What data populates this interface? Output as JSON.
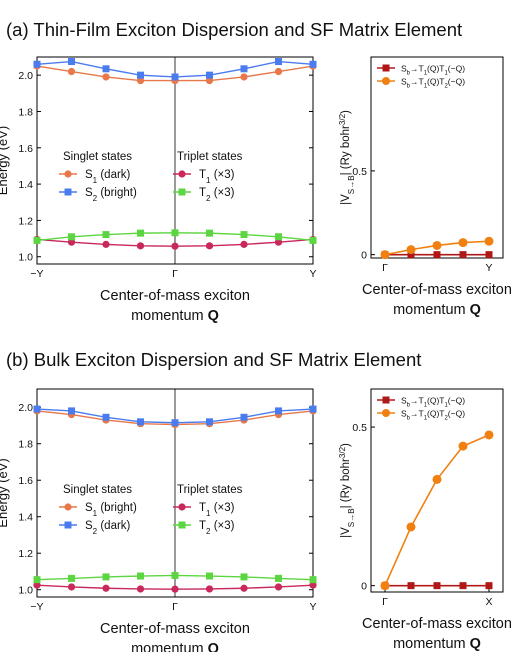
{
  "panel_a_title": "(a) Thin-Film Exciton Dispersion and SF Matrix Element",
  "panel_b_title": "(b) Bulk Exciton Dispersion and SF Matrix Element",
  "colors": {
    "s1": "#e8784a",
    "s2": "#4a7cf0",
    "t1": "#c8285a",
    "t2": "#5cd640",
    "v1": "#b01818",
    "v2": "#f08010"
  },
  "chart_data": [
    {
      "id": "a-dispersion",
      "type": "line",
      "xlabel": "Center-of-mass exciton momentum Q",
      "ylabel": "Energy (eV)",
      "x_tick_labels": [
        "−Y",
        "Γ",
        "Y"
      ],
      "ylim": [
        0.96,
        2.1
      ],
      "y_ticks": [
        1.0,
        1.2,
        1.4,
        1.6,
        1.8,
        2.0
      ],
      "legend_groups": [
        {
          "title": "Singlet states",
          "entries": [
            "S1 (dark)",
            "S2 (bright)"
          ]
        },
        {
          "title": "Triplet states",
          "entries": [
            "T1 (×3)",
            "T2 (×3)"
          ]
        }
      ],
      "x": [
        -1,
        -0.75,
        -0.5,
        -0.25,
        0,
        0.25,
        0.5,
        0.75,
        1
      ],
      "series": [
        {
          "name": "S1 (dark)",
          "values": [
            2.05,
            2.02,
            1.99,
            1.97,
            1.97,
            1.97,
            1.99,
            2.02,
            2.05
          ]
        },
        {
          "name": "S2 (bright)",
          "values": [
            2.06,
            2.075,
            2.035,
            2.0,
            1.99,
            2.0,
            2.035,
            2.075,
            2.06
          ]
        },
        {
          "name": "T1 (×3)",
          "values": [
            1.095,
            1.08,
            1.068,
            1.06,
            1.058,
            1.06,
            1.068,
            1.08,
            1.095
          ]
        },
        {
          "name": "T2 (×3)",
          "values": [
            1.09,
            1.11,
            1.122,
            1.13,
            1.132,
            1.13,
            1.122,
            1.11,
            1.09
          ]
        }
      ]
    },
    {
      "id": "a-matrix",
      "type": "line",
      "xlabel": "Center-of-mass exciton momentum Q",
      "ylabel": "|V_S→B|  (Ry bohr^3/2)",
      "x_tick_labels": [
        "Γ",
        "Y"
      ],
      "ylim": [
        -0.02,
        1.18
      ],
      "y_ticks": [
        0,
        0.5
      ],
      "x": [
        0,
        0.25,
        0.5,
        0.75,
        1
      ],
      "series": [
        {
          "name": "Sb→T1(Q)T1(−Q)",
          "values": [
            0,
            0,
            0,
            0,
            0
          ]
        },
        {
          "name": "Sb→T1(Q)T2(−Q)",
          "values": [
            0,
            0.03,
            0.055,
            0.072,
            0.08
          ]
        }
      ]
    },
    {
      "id": "b-dispersion",
      "type": "line",
      "xlabel": "Center-of-mass exciton momentum Q",
      "ylabel": "Energy (eV)",
      "x_tick_labels": [
        "−Y",
        "Γ",
        "Y"
      ],
      "ylim": [
        0.96,
        2.1
      ],
      "y_ticks": [
        1.0,
        1.2,
        1.4,
        1.6,
        1.8,
        2.0
      ],
      "legend_groups": [
        {
          "title": "Singlet states",
          "entries": [
            "S1 (bright)",
            "S2 (dark)"
          ]
        },
        {
          "title": "Triplet states",
          "entries": [
            "T1 (×3)",
            "T2 (×3)"
          ]
        }
      ],
      "x": [
        -1,
        -0.75,
        -0.5,
        -0.25,
        0,
        0.25,
        0.5,
        0.75,
        1
      ],
      "series": [
        {
          "name": "S1 (bright)",
          "values": [
            1.98,
            1.96,
            1.93,
            1.91,
            1.905,
            1.91,
            1.93,
            1.96,
            1.98
          ]
        },
        {
          "name": "S2 (dark)",
          "values": [
            1.99,
            1.98,
            1.945,
            1.92,
            1.915,
            1.92,
            1.945,
            1.98,
            1.99
          ]
        },
        {
          "name": "T1 (×3)",
          "values": [
            1.025,
            1.015,
            1.008,
            1.004,
            1.003,
            1.004,
            1.008,
            1.015,
            1.025
          ]
        },
        {
          "name": "T2 (×3)",
          "values": [
            1.055,
            1.062,
            1.07,
            1.075,
            1.078,
            1.075,
            1.07,
            1.062,
            1.055
          ]
        }
      ]
    },
    {
      "id": "b-matrix",
      "type": "line",
      "xlabel": "Center-of-mass exciton momentum Q",
      "ylabel": "|V_S→B|  (Ry bohr^3/2)",
      "x_tick_labels": [
        "Γ",
        "X"
      ],
      "ylim": [
        -0.02,
        0.62
      ],
      "y_ticks": [
        0,
        0.5
      ],
      "x": [
        0,
        0.25,
        0.5,
        0.75,
        1
      ],
      "series": [
        {
          "name": "Sb→T1(Q)T1(−Q)",
          "values": [
            0,
            0,
            0,
            0,
            0
          ]
        },
        {
          "name": "Sb→T1(Q)T2(−Q)",
          "values": [
            0,
            0.185,
            0.335,
            0.44,
            0.475
          ]
        }
      ]
    }
  ]
}
